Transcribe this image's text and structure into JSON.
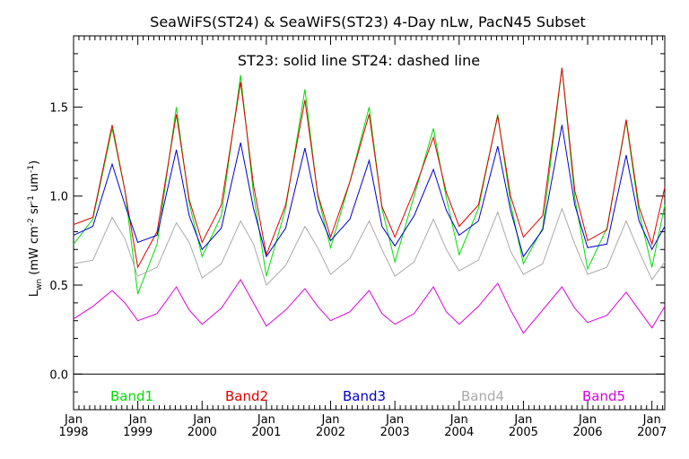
{
  "chart_data": {
    "type": "line",
    "title": "SeaWiFS(ST24) & SeaWiFS(ST23) 4-Day nLw, PacN45 Subset",
    "subtitle": "ST23: solid line   ST24: dashed line",
    "ylabel": "L_wn (mW cm^-2 sr^-1 um^-1)",
    "ylabel_parts": {
      "base": "L",
      "sub": "wn",
      "units_open": " (mW cm",
      "exp1": "-2",
      "units_mid1": " sr",
      "exp2": "-1",
      "units_mid2": " um",
      "exp3": "-1",
      "units_close": ")"
    },
    "xlim": [
      1998.0,
      2007.2
    ],
    "ylim": [
      -0.2,
      1.9
    ],
    "yticks": [
      "0.0",
      "0.5",
      "1.0",
      "1.5"
    ],
    "ytick_values": [
      0.0,
      0.5,
      1.0,
      1.5
    ],
    "xticks": [
      {
        "year": 1998,
        "month": "Jan",
        "label": "1998"
      },
      {
        "year": 1999,
        "month": "Jan",
        "label": "1999"
      },
      {
        "year": 2000,
        "month": "Jan",
        "label": "2000"
      },
      {
        "year": 2001,
        "month": "Jan",
        "label": "2001"
      },
      {
        "year": 2002,
        "month": "Jan",
        "label": "2002"
      },
      {
        "year": 2003,
        "month": "Jan",
        "label": "2003"
      },
      {
        "year": 2004,
        "month": "Jan",
        "label": "2004"
      },
      {
        "year": 2005,
        "month": "Jan",
        "label": "2005"
      },
      {
        "year": 2006,
        "month": "Jan",
        "label": "2006"
      },
      {
        "year": 2007,
        "month": "Jan",
        "label": "2007"
      }
    ],
    "x": [
      1998.0,
      1998.3,
      1998.6,
      1998.8,
      1999.0,
      1999.3,
      1999.6,
      1999.8,
      2000.0,
      2000.3,
      2000.6,
      2000.8,
      2001.0,
      2001.3,
      2001.6,
      2001.8,
      2002.0,
      2002.3,
      2002.6,
      2002.8,
      2003.0,
      2003.3,
      2003.6,
      2003.8,
      2004.0,
      2004.3,
      2004.6,
      2004.8,
      2005.0,
      2005.3,
      2005.6,
      2005.8,
      2006.0,
      2006.3,
      2006.6,
      2006.8,
      2007.0,
      2007.2
    ],
    "series": [
      {
        "name": "Band1",
        "color": "#00dd00",
        "values": [
          0.73,
          0.87,
          1.38,
          1.03,
          0.45,
          0.73,
          1.5,
          0.96,
          0.66,
          0.89,
          1.68,
          1.01,
          0.55,
          0.93,
          1.6,
          1.0,
          0.71,
          1.08,
          1.5,
          0.93,
          0.63,
          1.0,
          1.38,
          0.99,
          0.67,
          0.93,
          1.46,
          0.96,
          0.62,
          0.82,
          1.72,
          0.99,
          0.59,
          0.82,
          1.42,
          0.91,
          0.6,
          0.95
        ]
      },
      {
        "name": "Band2",
        "color": "#dd0000",
        "values": [
          0.84,
          0.88,
          1.4,
          1.03,
          0.6,
          0.8,
          1.46,
          0.98,
          0.74,
          0.95,
          1.64,
          1.06,
          0.67,
          0.95,
          1.54,
          1.01,
          0.77,
          1.08,
          1.46,
          0.94,
          0.77,
          1.03,
          1.33,
          1.02,
          0.83,
          0.95,
          1.45,
          1.0,
          0.77,
          0.89,
          1.72,
          1.03,
          0.75,
          0.81,
          1.43,
          0.94,
          0.73,
          1.05
        ]
      },
      {
        "name": "Band3",
        "color": "#0000cc",
        "values": [
          0.78,
          0.83,
          1.18,
          0.95,
          0.74,
          0.78,
          1.26,
          0.89,
          0.7,
          0.82,
          1.3,
          0.93,
          0.66,
          0.82,
          1.27,
          0.92,
          0.75,
          0.87,
          1.2,
          0.83,
          0.72,
          0.89,
          1.15,
          0.92,
          0.78,
          0.86,
          1.28,
          0.92,
          0.66,
          0.81,
          1.4,
          0.95,
          0.71,
          0.73,
          1.23,
          0.86,
          0.7,
          0.83
        ]
      },
      {
        "name": "Band4",
        "color": "#aaaaaa",
        "values": [
          0.62,
          0.64,
          0.88,
          0.76,
          0.55,
          0.6,
          0.85,
          0.74,
          0.54,
          0.62,
          0.86,
          0.73,
          0.5,
          0.61,
          0.83,
          0.71,
          0.56,
          0.65,
          0.86,
          0.7,
          0.55,
          0.63,
          0.87,
          0.7,
          0.58,
          0.64,
          0.91,
          0.69,
          0.56,
          0.62,
          0.93,
          0.73,
          0.56,
          0.6,
          0.86,
          0.69,
          0.53,
          0.63
        ]
      },
      {
        "name": "Band5",
        "color": "#dd00dd",
        "values": [
          0.31,
          0.38,
          0.47,
          0.4,
          0.3,
          0.34,
          0.49,
          0.36,
          0.28,
          0.37,
          0.53,
          0.4,
          0.27,
          0.36,
          0.48,
          0.38,
          0.3,
          0.35,
          0.47,
          0.34,
          0.28,
          0.34,
          0.49,
          0.35,
          0.28,
          0.38,
          0.51,
          0.36,
          0.23,
          0.36,
          0.49,
          0.37,
          0.29,
          0.33,
          0.46,
          0.36,
          0.26,
          0.38
        ]
      }
    ],
    "legend": [
      "Band1",
      "Band2",
      "Band3",
      "Band4",
      "Band5"
    ],
    "grid": false
  }
}
